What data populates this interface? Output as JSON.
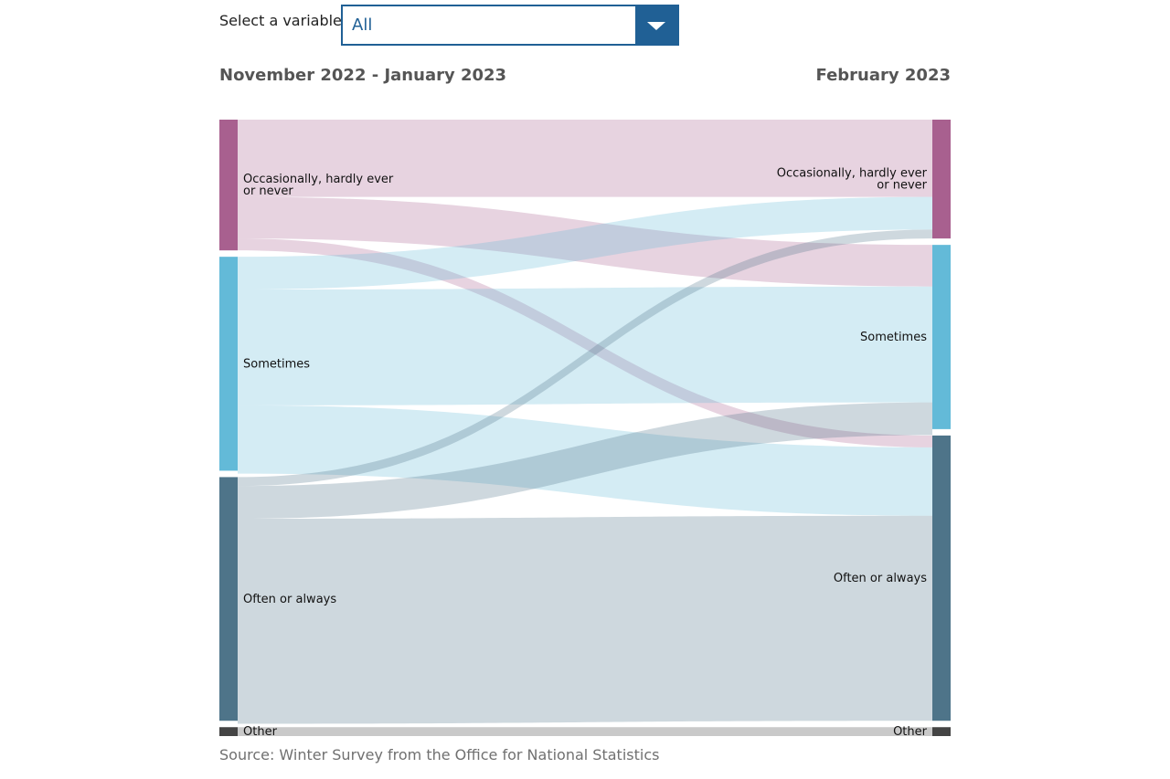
{
  "selector": {
    "label": "Select a variable:",
    "value": "All"
  },
  "periods": {
    "left": "November 2022 - January 2023",
    "right": "February 2023"
  },
  "colors": {
    "occasionally": "#a8608f",
    "sometimes": "#63bad8",
    "often": "#4e7489",
    "other": "#444444",
    "other_flow": "#c9c9c9"
  },
  "source": "Source: Winter Survey from the Office for National Statistics",
  "chart_data": {
    "type": "sankey",
    "units": "percent",
    "nodes_left": [
      {
        "id": "occasionally",
        "label_lines": [
          "Occasionally, hardly ever",
          "or never"
        ],
        "value": 22
      },
      {
        "id": "sometimes",
        "label_lines": [
          "Sometimes"
        ],
        "value": 36
      },
      {
        "id": "often",
        "label_lines": [
          "Often or always"
        ],
        "value": 41
      },
      {
        "id": "other",
        "label_lines": [
          "Other"
        ],
        "value": 1.5
      }
    ],
    "nodes_right": [
      {
        "id": "occasionally",
        "label_lines": [
          "Occasionally, hardly ever",
          "or never"
        ],
        "value": 20
      },
      {
        "id": "sometimes",
        "label_lines": [
          "Sometimes"
        ],
        "value": 31
      },
      {
        "id": "often",
        "label_lines": [
          "Often or always"
        ],
        "value": 48
      },
      {
        "id": "other",
        "label_lines": [
          "Other"
        ],
        "value": 1.5
      }
    ],
    "flows": [
      {
        "source": "occasionally",
        "target": "occasionally",
        "value": 13
      },
      {
        "source": "occasionally",
        "target": "sometimes",
        "value": 7
      },
      {
        "source": "occasionally",
        "target": "often",
        "value": 2
      },
      {
        "source": "sometimes",
        "target": "occasionally",
        "value": 5.5
      },
      {
        "source": "sometimes",
        "target": "sometimes",
        "value": 19.5
      },
      {
        "source": "sometimes",
        "target": "often",
        "value": 11.5
      },
      {
        "source": "often",
        "target": "occasionally",
        "value": 1.5
      },
      {
        "source": "often",
        "target": "sometimes",
        "value": 5.5
      },
      {
        "source": "often",
        "target": "often",
        "value": 34.5
      },
      {
        "source": "other",
        "target": "other",
        "value": 1.5
      }
    ]
  }
}
